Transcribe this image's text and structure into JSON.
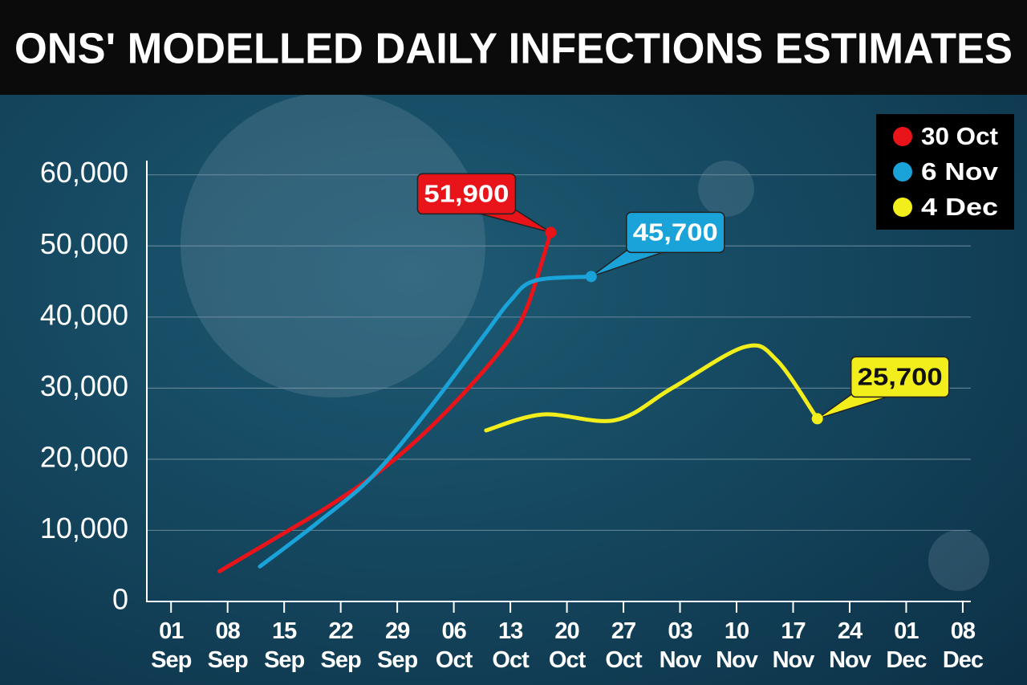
{
  "chart_data": {
    "type": "line",
    "title": "ONS' MODELLED DAILY INFECTIONS ESTIMATES",
    "xlim": [
      "29 Aug",
      "09 Dec"
    ],
    "xticks": [
      "01 Sep",
      "08 Sep",
      "15 Sep",
      "22 Sep",
      "29 Sep",
      "06 Oct",
      "13 Oct",
      "20 Oct",
      "27 Oct",
      "03 Nov",
      "10 Nov",
      "17 Nov",
      "24 Nov",
      "01 Dec",
      "08 Dec"
    ],
    "ylim": [
      0,
      62000
    ],
    "yticks": [
      0,
      {
        "value": 10000,
        "label": "10,000"
      },
      {
        "value": 20000,
        "label": "20,000"
      },
      {
        "value": 30000,
        "label": "30,000"
      },
      {
        "value": 40000,
        "label": "40,000"
      },
      {
        "value": 50000,
        "label": "50,000"
      },
      {
        "value": 60000,
        "label": "60,000"
      }
    ],
    "grid": true,
    "legend": "top-right",
    "series": [
      {
        "name": "30 Oct",
        "color": "#e8141a",
        "x": [
          "07 Sep",
          "14 Sep",
          "21 Sep",
          "28 Sep",
          "05 Oct",
          "12 Oct",
          "15 Oct",
          "18 Oct"
        ],
        "values": [
          4250,
          8950,
          13760,
          19360,
          26630,
          35580,
          41200,
          51900
        ],
        "value_labels": [
          null,
          null,
          null,
          null,
          null,
          null,
          null,
          "51,900"
        ]
      },
      {
        "name": "6 Nov",
        "color": "#1aa3d9",
        "x": [
          "12 Sep",
          "19 Sep",
          "26 Sep",
          "03 Oct",
          "10 Oct",
          "13 Oct",
          "16 Oct",
          "23 Oct"
        ],
        "values": [
          4920,
          10970,
          17680,
          27190,
          37820,
          42300,
          45100,
          45700
        ],
        "value_labels": [
          null,
          null,
          null,
          null,
          null,
          null,
          null,
          "45,700"
        ]
      },
      {
        "name": "4 Dec",
        "color": "#f2ee1c",
        "x": [
          "10 Oct",
          "17 Oct",
          "26 Oct",
          "02 Nov",
          "11 Nov",
          "15 Nov",
          "20 Nov"
        ],
        "values": [
          24060,
          26300,
          25500,
          29990,
          35800,
          33900,
          25700
        ],
        "value_labels": [
          null,
          null,
          null,
          null,
          null,
          null,
          "25,700"
        ]
      }
    ]
  }
}
